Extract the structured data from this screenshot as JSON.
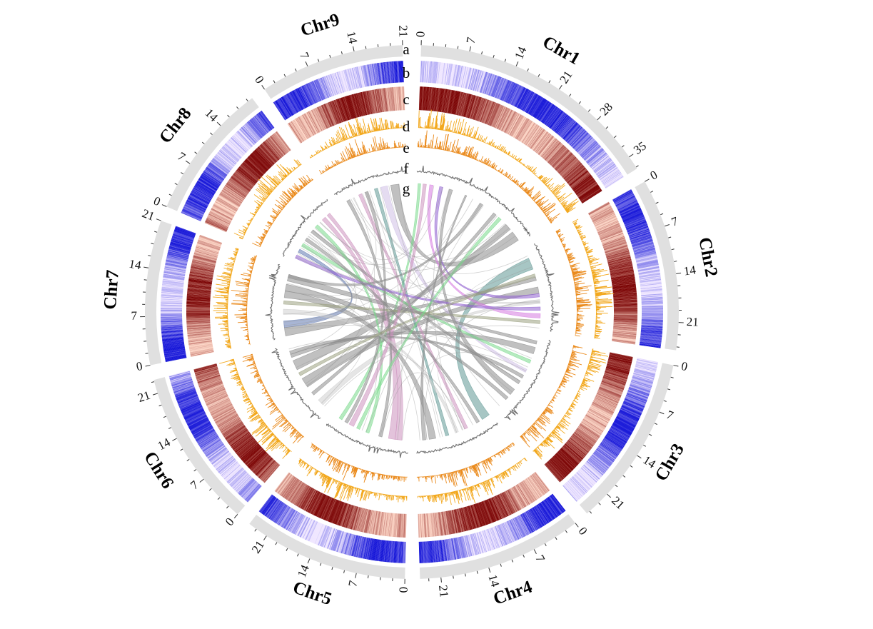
{
  "chart_data": {
    "type": "circos",
    "chromosomes": [
      {
        "name": "Chr1",
        "length": 37
      },
      {
        "name": "Chr2",
        "length": 25
      },
      {
        "name": "Chr3",
        "length": 25
      },
      {
        "name": "Chr4",
        "length": 24
      },
      {
        "name": "Chr5",
        "length": 24
      },
      {
        "name": "Chr6",
        "length": 23
      },
      {
        "name": "Chr7",
        "length": 21
      },
      {
        "name": "Chr8",
        "length": 20
      },
      {
        "name": "Chr9",
        "length": 21
      }
    ],
    "tick_label_interval": 7,
    "minor_tick_interval": 1.75,
    "tracks": [
      {
        "label": "a",
        "type": "ideogram",
        "color": "#e0e0e0"
      },
      {
        "label": "b",
        "type": "heatmap",
        "color_low": "#efe6ff",
        "color_high": "#1414d8"
      },
      {
        "label": "c",
        "type": "heatmap",
        "color_low": "#fcd3c3",
        "color_high": "#7a0000"
      },
      {
        "label": "d",
        "type": "histogram",
        "color": "#f2a71b"
      },
      {
        "label": "e",
        "type": "histogram",
        "color": "#ea8a1c"
      },
      {
        "label": "f",
        "type": "line",
        "color": "#707070"
      },
      {
        "label": "g",
        "type": "links"
      }
    ],
    "link_colors": {
      "gray": "#8c8c8c",
      "teal": "#5e9793",
      "green": "#78d98a",
      "pink": "#cc92bd",
      "blue": "#6079b0",
      "purple": "#9060d0",
      "magenta": "#d57ae0",
      "lavender": "#cfbfe6",
      "lightgray": "#cfcfcf",
      "olive": "#9aa080"
    },
    "links": [
      [
        "Chr9",
        16,
        18.5,
        "Chr1",
        33,
        36,
        "gray"
      ],
      [
        "Chr2",
        3,
        6.5,
        "Chr4",
        0.5,
        3,
        "teal"
      ],
      [
        "Chr1",
        0.5,
        1.3,
        "Chr5",
        21,
        22,
        "green"
      ],
      [
        "Chr6",
        9,
        12,
        "Chr2",
        12,
        14,
        "gray"
      ],
      [
        "Chr8",
        15,
        16.2,
        "Chr5",
        4,
        6,
        "pink"
      ],
      [
        "Chr7",
        3,
        5,
        "Chr8",
        3,
        4,
        "blue"
      ],
      [
        "Chr1",
        7,
        8,
        "Chr2",
        14,
        15,
        "purple"
      ],
      [
        "Chr2",
        20,
        21.3,
        "Chr1",
        4,
        5,
        "magenta"
      ],
      [
        "Chr9",
        13,
        15,
        "Chr3",
        10,
        11,
        "lavender"
      ],
      [
        "Chr9",
        11,
        12,
        "Chr4",
        14,
        15,
        "teal"
      ],
      [
        "Chr7",
        0.5,
        3,
        "Chr2",
        9,
        10,
        "gray"
      ],
      [
        "Chr6",
        15,
        18,
        "Chr1",
        30,
        32,
        "gray"
      ],
      [
        "Chr8",
        10,
        11,
        "Chr3",
        14,
        15,
        "gray"
      ],
      [
        "Chr7",
        14,
        16,
        "Chr3",
        20,
        21,
        "gray"
      ],
      [
        "Chr6",
        2,
        4,
        "Chr2",
        16,
        17,
        "lightgray"
      ],
      [
        "Chr5",
        2,
        4,
        "Chr8",
        17,
        18,
        "pink"
      ],
      [
        "Chr5",
        8,
        9,
        "Chr9",
        2,
        3,
        "gray"
      ],
      [
        "Chr4",
        18,
        20,
        "Chr7",
        12,
        14,
        "gray"
      ],
      [
        "Chr3",
        3,
        5,
        "Chr6",
        19,
        20,
        "gray"
      ],
      [
        "Chr3",
        7,
        8,
        "Chr8",
        5,
        6,
        "green"
      ],
      [
        "Chr2",
        22,
        23,
        "Chr7",
        10,
        11,
        "olive"
      ],
      [
        "Chr1",
        25,
        26,
        "Chr6",
        6,
        7,
        "gray"
      ],
      [
        "Chr4",
        8,
        9,
        "Chr9",
        6,
        7,
        "pink"
      ],
      [
        "Chr3",
        17,
        19,
        "Chr1",
        10,
        11,
        "gray"
      ],
      [
        "Chr5",
        12,
        13,
        "Chr8",
        12,
        13,
        "green"
      ],
      [
        "Chr7",
        17,
        19,
        "Chr3",
        1,
        2,
        "gray"
      ],
      [
        "Chr4",
        21,
        22,
        "Chr1",
        15,
        15.5,
        "gray"
      ],
      [
        "Chr8",
        1,
        2,
        "Chr2",
        18,
        19,
        "purple"
      ],
      [
        "Chr1",
        2,
        3,
        "Chr5",
        17,
        18.5,
        "pink"
      ],
      [
        "Chr9",
        8,
        9,
        "Chr5",
        19,
        20,
        "gray"
      ],
      [
        "Chr6",
        20,
        21,
        "Chr3",
        12,
        13,
        "gray"
      ],
      [
        "Chr7",
        7,
        8.5,
        "Chr4",
        11,
        12,
        "lightgray"
      ],
      [
        "Chr2",
        8,
        9,
        "Chr6",
        13,
        14,
        "olive"
      ],
      [
        "Chr1",
        20,
        21,
        "Chr7",
        18,
        19,
        "gray"
      ],
      [
        "Chr8",
        7,
        8,
        "Chr4",
        4,
        5,
        "gray"
      ],
      [
        "Chr5",
        15,
        16,
        "Chr1",
        27,
        28,
        "green"
      ]
    ]
  }
}
